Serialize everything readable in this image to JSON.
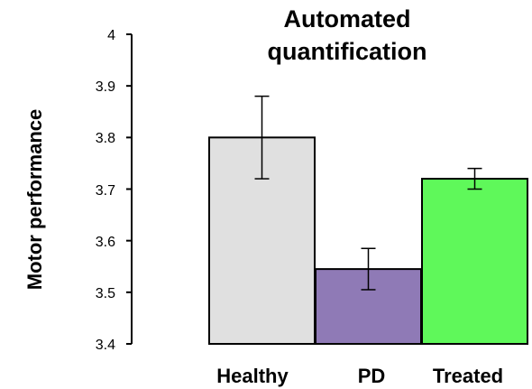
{
  "chart_data": {
    "type": "bar",
    "title_lines": [
      "Automated",
      "quantification"
    ],
    "xlabel": "",
    "ylabel": "Motor performance",
    "ylim": [
      3.4,
      4.0
    ],
    "yticks": [
      "4",
      "3.9",
      "3.8",
      "3.7",
      "3.6",
      "3.5",
      "3.4"
    ],
    "ytick_values": [
      4.0,
      3.9,
      3.8,
      3.7,
      3.6,
      3.5,
      3.4
    ],
    "categories": [
      "Healthy",
      "PD",
      "Treated"
    ],
    "values": [
      3.8,
      3.545,
      3.72
    ],
    "errors": [
      0.08,
      0.04,
      0.02
    ],
    "colors": [
      "#e0e0e0",
      "#8f7ab6",
      "#5ff85a"
    ],
    "grid": false,
    "legend": "none"
  }
}
